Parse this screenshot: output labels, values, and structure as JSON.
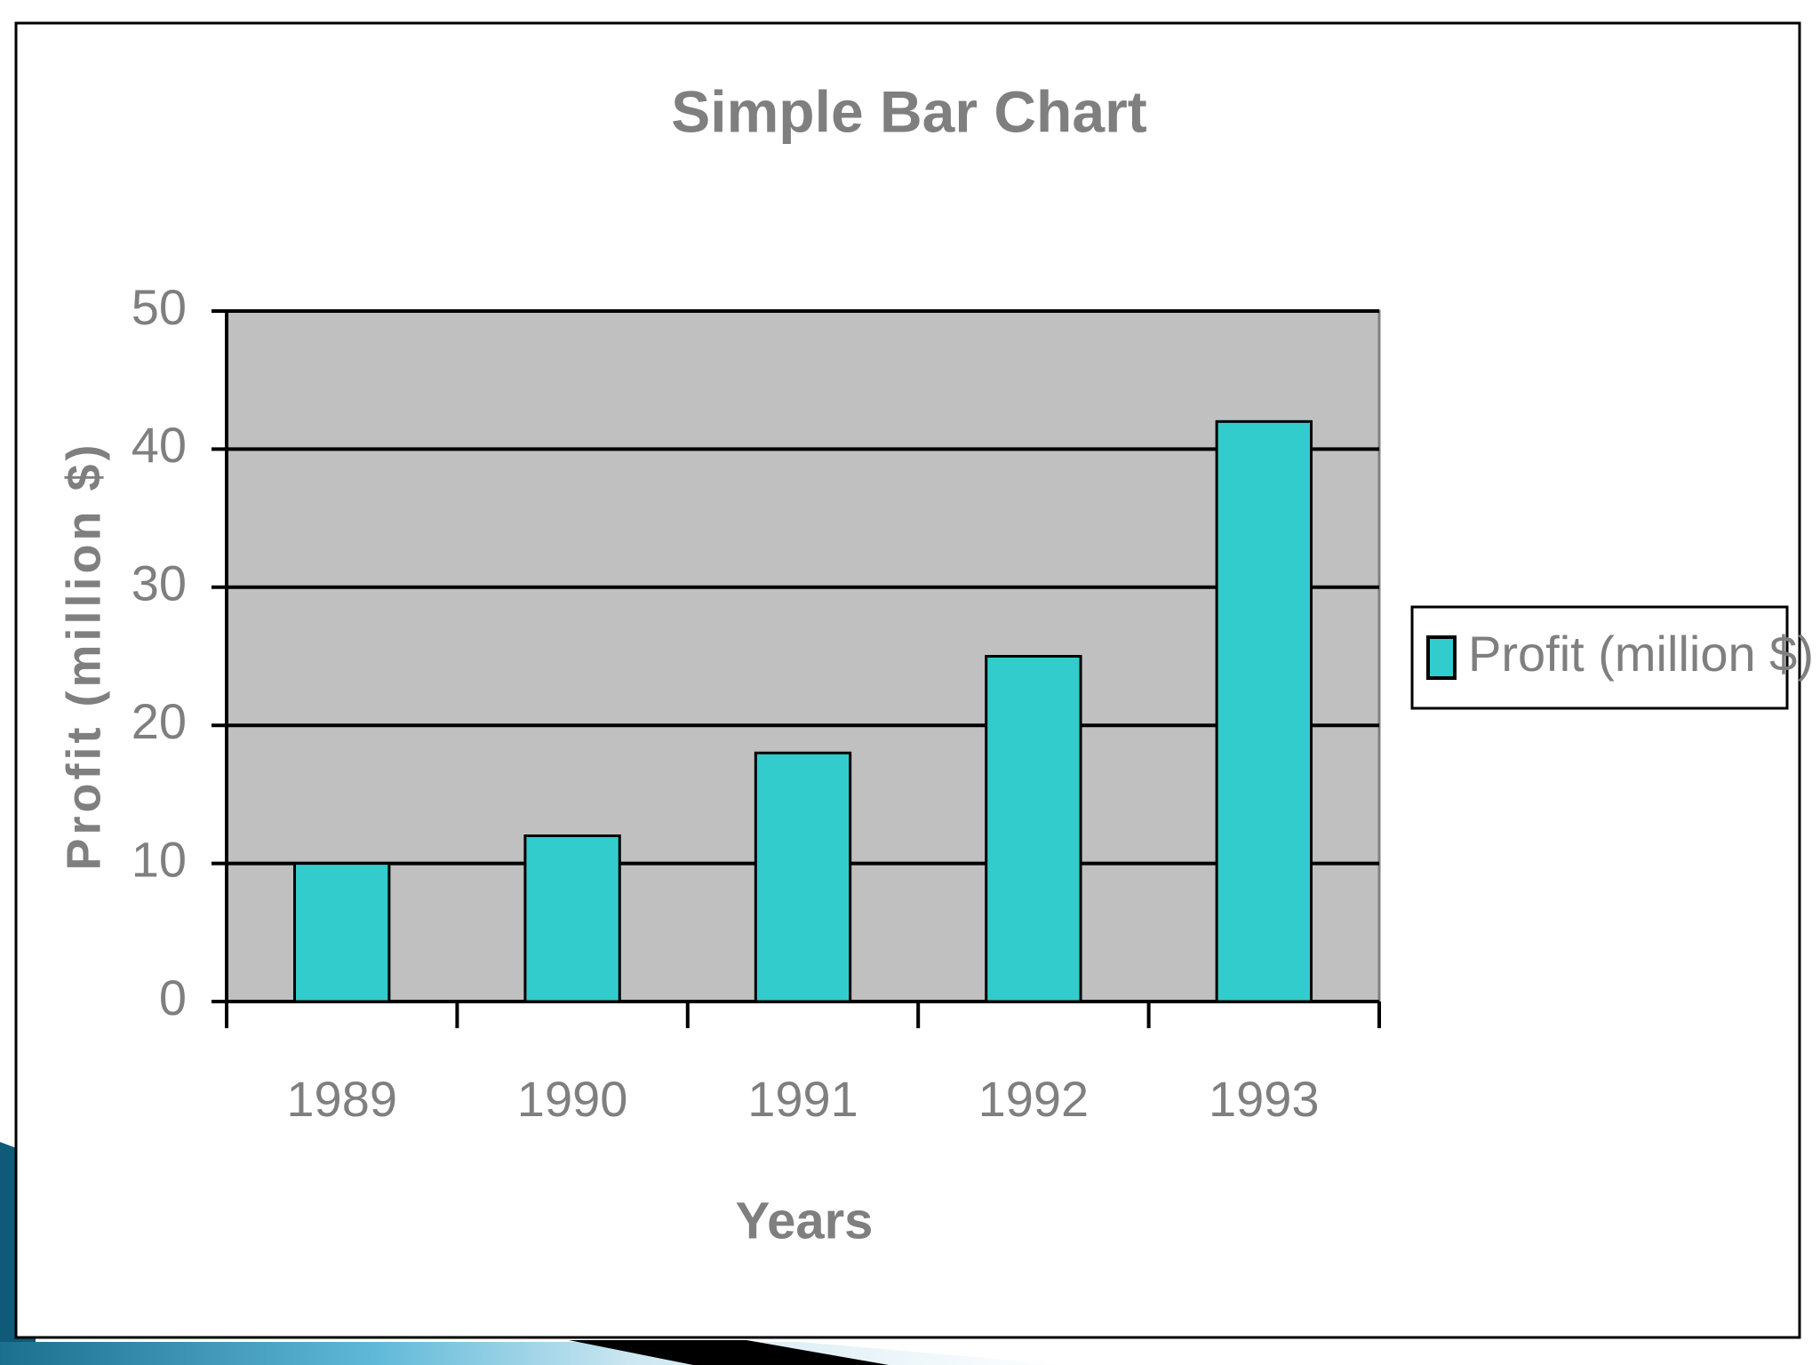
{
  "chart_data": {
    "type": "bar",
    "title": "Simple Bar Chart",
    "x_label": "Years",
    "y_label": "Profit (million $)",
    "categories": [
      "1989",
      "1990",
      "1991",
      "1992",
      "1993"
    ],
    "series": [
      {
        "name": "Profit (million $)",
        "color": "#33cccc",
        "values": [
          10,
          12,
          18,
          25,
          42
        ]
      }
    ],
    "ylim": [
      0,
      50
    ],
    "yticks": [
      0,
      10,
      20,
      30,
      40,
      50
    ],
    "grid": true,
    "plot_background": "#c0c0c0",
    "legend": "right"
  }
}
